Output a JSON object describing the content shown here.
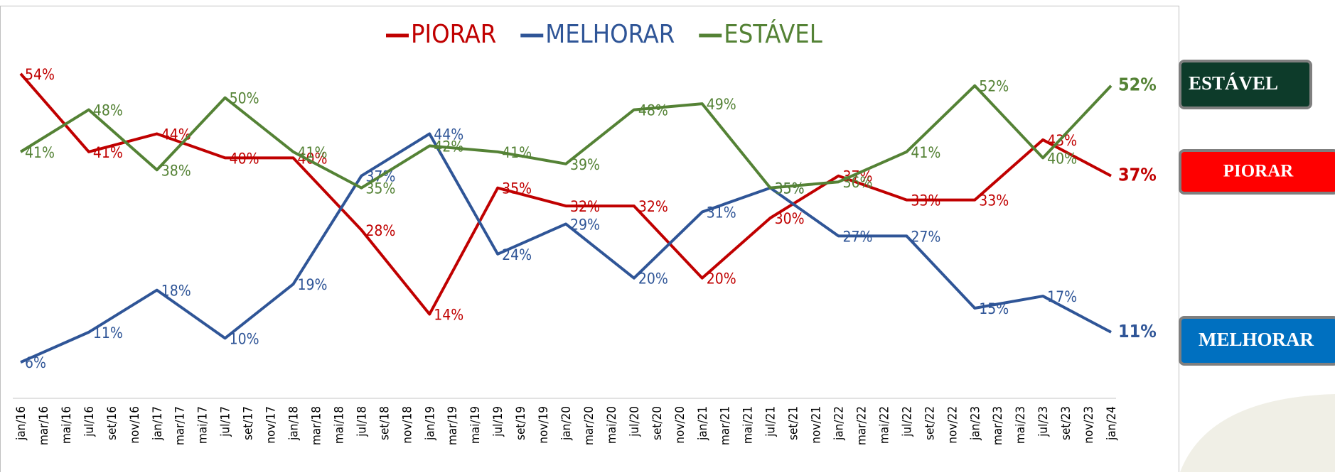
{
  "chart_data": {
    "type": "line",
    "categories": [
      "jan/16",
      "mar/16",
      "mai/16",
      "jul/16",
      "set/16",
      "nov/16",
      "jan/17",
      "mar/17",
      "mai/17",
      "jul/17",
      "set/17",
      "nov/17",
      "jan/18",
      "mar/18",
      "mai/18",
      "jul/18",
      "set/18",
      "nov/18",
      "jan/19",
      "mar/19",
      "mai/19",
      "jul/19",
      "set/19",
      "nov/19",
      "jan/20",
      "mar/20",
      "mai/20",
      "jul/20",
      "set/20",
      "nov/20",
      "jan/21",
      "mar/21",
      "mai/21",
      "jul/21",
      "set/21",
      "nov/21",
      "jan/22",
      "mar/22",
      "mai/22",
      "jul/22",
      "set/22",
      "nov/22",
      "jan/23",
      "mar/23",
      "mai/23",
      "jul/23",
      "set/23",
      "nov/23",
      "jan/24"
    ],
    "x": [
      "jan/16",
      "jul/16",
      "jan/17",
      "jul/17",
      "jan/18",
      "jul/18",
      "jan/19",
      "jul/19",
      "jan/20",
      "jul/20",
      "jan/21",
      "jul/21",
      "jan/22",
      "jul/22",
      "jan/23",
      "jul/23",
      "jan/24"
    ],
    "ylim": [
      0,
      60
    ],
    "legend": "top",
    "series": [
      {
        "name": "PIORAR",
        "color": "#c00000",
        "values": [
          54,
          41,
          44,
          40,
          40,
          28,
          14,
          35,
          32,
          32,
          20,
          30,
          37,
          33,
          33,
          43,
          37
        ],
        "value_labels": [
          "54%",
          "41%",
          "44%",
          "40%",
          "40%",
          "28%",
          "14%",
          "35%",
          "32%",
          "32%",
          "20%",
          "30%",
          "37%",
          "33%",
          "33%",
          "43%",
          "37%"
        ]
      },
      {
        "name": "MELHORAR",
        "color": "#2f5597",
        "values": [
          6,
          11,
          18,
          10,
          19,
          37,
          44,
          24,
          29,
          20,
          31,
          35,
          27,
          27,
          15,
          17,
          11
        ],
        "value_labels": [
          "6%",
          "11%",
          "18%",
          "10%",
          "19%",
          "37%",
          "44%",
          "24%",
          "29%",
          "20%",
          "31%",
          "35%",
          "27%",
          "27%",
          "15%",
          "17%",
          "11%"
        ]
      },
      {
        "name": "ESTÁVEL",
        "color": "#548235",
        "values": [
          41,
          48,
          38,
          50,
          41,
          35,
          42,
          41,
          39,
          48,
          49,
          35,
          36,
          41,
          52,
          40,
          52
        ],
        "value_labels": [
          "41%",
          "48%",
          "38%",
          "50%",
          "41%",
          "35%",
          "42%",
          "41%",
          "39%",
          "48%",
          "49%",
          "35%",
          "36%",
          "41%",
          "52%",
          "40%",
          "52%"
        ]
      }
    ]
  }
}
